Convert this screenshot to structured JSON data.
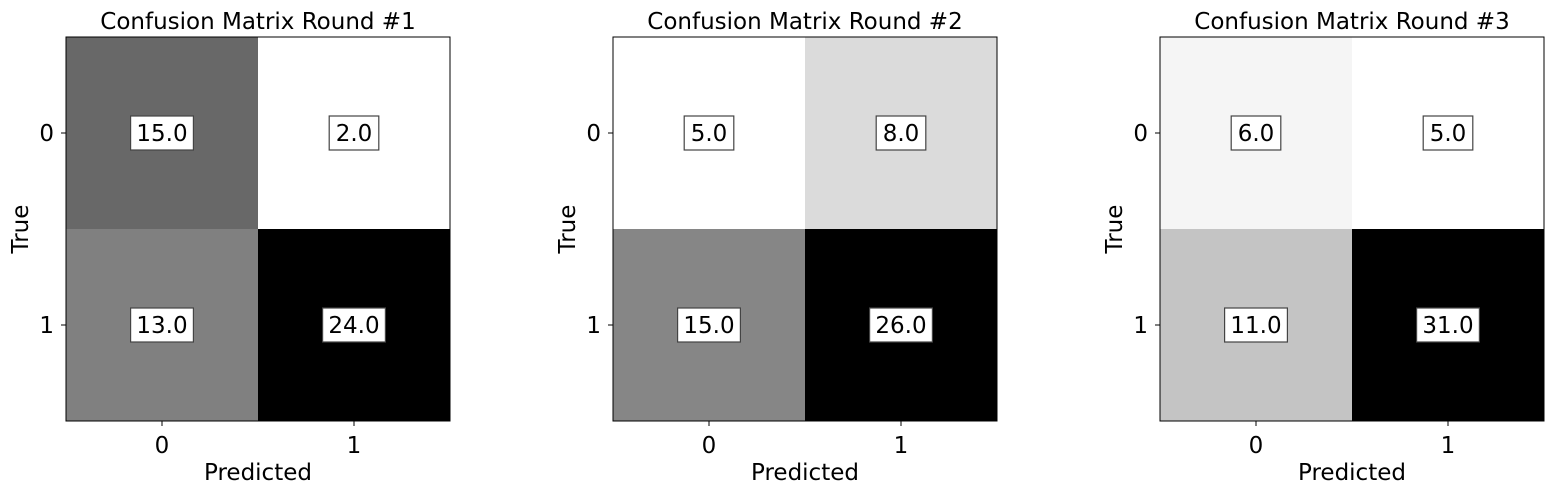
{
  "chart_data": [
    {
      "type": "heatmap",
      "title": "Confusion Matrix Round #1",
      "xlabel": "Predicted",
      "ylabel": "True",
      "x_categories": [
        "0",
        "1"
      ],
      "y_categories": [
        "0",
        "1"
      ],
      "values": [
        [
          15.0,
          2.0
        ],
        [
          13.0,
          24.0
        ]
      ],
      "value_labels": [
        [
          "15.0",
          "2.0"
        ],
        [
          "13.0",
          "24.0"
        ]
      ],
      "colormap": "gray_r"
    },
    {
      "type": "heatmap",
      "title": "Confusion Matrix Round #2",
      "xlabel": "Predicted",
      "ylabel": "True",
      "x_categories": [
        "0",
        "1"
      ],
      "y_categories": [
        "0",
        "1"
      ],
      "values": [
        [
          5.0,
          8.0
        ],
        [
          15.0,
          26.0
        ]
      ],
      "value_labels": [
        [
          "5.0",
          "8.0"
        ],
        [
          "15.0",
          "26.0"
        ]
      ],
      "colormap": "gray_r"
    },
    {
      "type": "heatmap",
      "title": "Confusion Matrix Round #3",
      "xlabel": "Predicted",
      "ylabel": "True",
      "x_categories": [
        "0",
        "1"
      ],
      "y_categories": [
        "0",
        "1"
      ],
      "values": [
        [
          6.0,
          5.0
        ],
        [
          11.0,
          31.0
        ]
      ],
      "value_labels": [
        [
          "6.0",
          "5.0"
        ],
        [
          "11.0",
          "31.0"
        ]
      ],
      "colormap": "gray_r"
    }
  ]
}
